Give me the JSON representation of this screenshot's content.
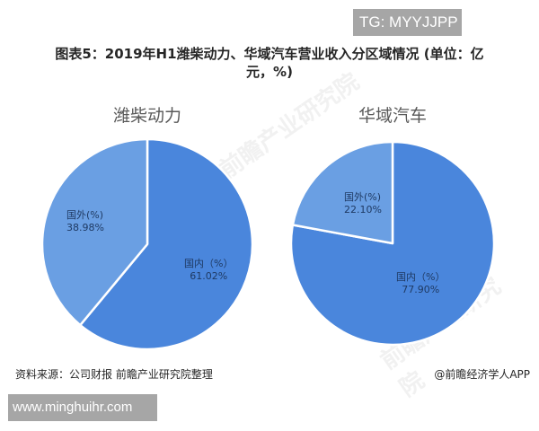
{
  "overlay": {
    "tg_badge": "TG: MYYJJPP",
    "url_badge": "www.minghuihr.com"
  },
  "header": {
    "title_line1": "图表5：2019年H1潍柴动力、华域汽车营业收入分区域情况 (单位：亿",
    "title_line2": "元，%)"
  },
  "footer": {
    "source": "资料来源：公司财报 前瞻产业研究院整理",
    "credit": "@前瞻经济学人APP"
  },
  "watermark_text": "前瞻产业研究院",
  "colors": {
    "domestic": "#4a86dc",
    "foreign": "#6a9fe3",
    "separator": "#ffffff"
  },
  "chart_data": [
    {
      "type": "pie",
      "title": "潍柴动力",
      "categories": [
        "国内（%）",
        "国外(%)"
      ],
      "values": [
        61.02,
        38.98
      ],
      "labels": [
        {
          "name": "国内（%）",
          "value": "61.02%"
        },
        {
          "name": "国外(%)",
          "value": "38.98%"
        }
      ],
      "legend": "none"
    },
    {
      "type": "pie",
      "title": "华域汽车",
      "categories": [
        "国内（%）",
        "国外(%)"
      ],
      "values": [
        77.9,
        22.1
      ],
      "labels": [
        {
          "name": "国内（%）",
          "value": "77.90%"
        },
        {
          "name": "国外(%)",
          "value": "22.10%"
        }
      ],
      "legend": "none"
    }
  ]
}
